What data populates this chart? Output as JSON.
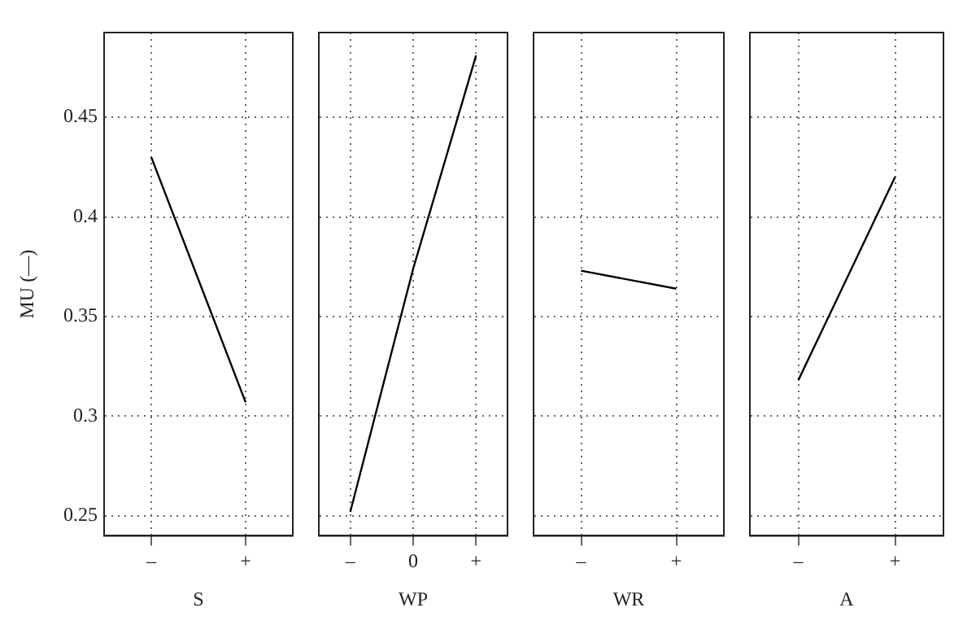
{
  "chart_data": [
    {
      "type": "line",
      "categories": [
        "–",
        "+"
      ],
      "series": [
        {
          "color": "#000000",
          "values": [
            0.43,
            0.307
          ]
        }
      ],
      "xlabel": "S",
      "ylabel": "MU (—)",
      "ylim": [
        0.24,
        0.4925
      ],
      "yticks": [
        0.25,
        0.3,
        0.35,
        0.4,
        0.45
      ],
      "grid": true,
      "legend": false,
      "marker": "none"
    },
    {
      "type": "line",
      "categories": [
        "–",
        "0",
        "+"
      ],
      "series": [
        {
          "color": "#000000",
          "values": [
            0.252,
            0.374,
            0.481
          ]
        }
      ],
      "xlabel": "WP",
      "ylim": [
        0.24,
        0.4925
      ],
      "yticks": [
        0.25,
        0.3,
        0.35,
        0.4,
        0.45
      ],
      "grid": true,
      "legend": false,
      "marker": "none",
      "tick_labels": "x"
    },
    {
      "type": "line",
      "categories": [
        "–",
        "+"
      ],
      "series": [
        {
          "color": "#000000",
          "values": [
            0.373,
            0.364
          ]
        }
      ],
      "xlabel": "WR",
      "ylim": [
        0.24,
        0.4925
      ],
      "yticks": [
        0.25,
        0.3,
        0.35,
        0.4,
        0.45
      ],
      "grid": true,
      "legend": false,
      "marker": "none",
      "tick_labels": "x"
    },
    {
      "type": "line",
      "categories": [
        "–",
        "+"
      ],
      "series": [
        {
          "color": "#000000",
          "values": [
            0.318,
            0.42
          ]
        }
      ],
      "xlabel": "A",
      "ylim": [
        0.24,
        0.4925
      ],
      "yticks": [
        0.25,
        0.3,
        0.35,
        0.4,
        0.45
      ],
      "grid": true,
      "legend": false,
      "marker": "none",
      "tick_labels": "x"
    }
  ]
}
